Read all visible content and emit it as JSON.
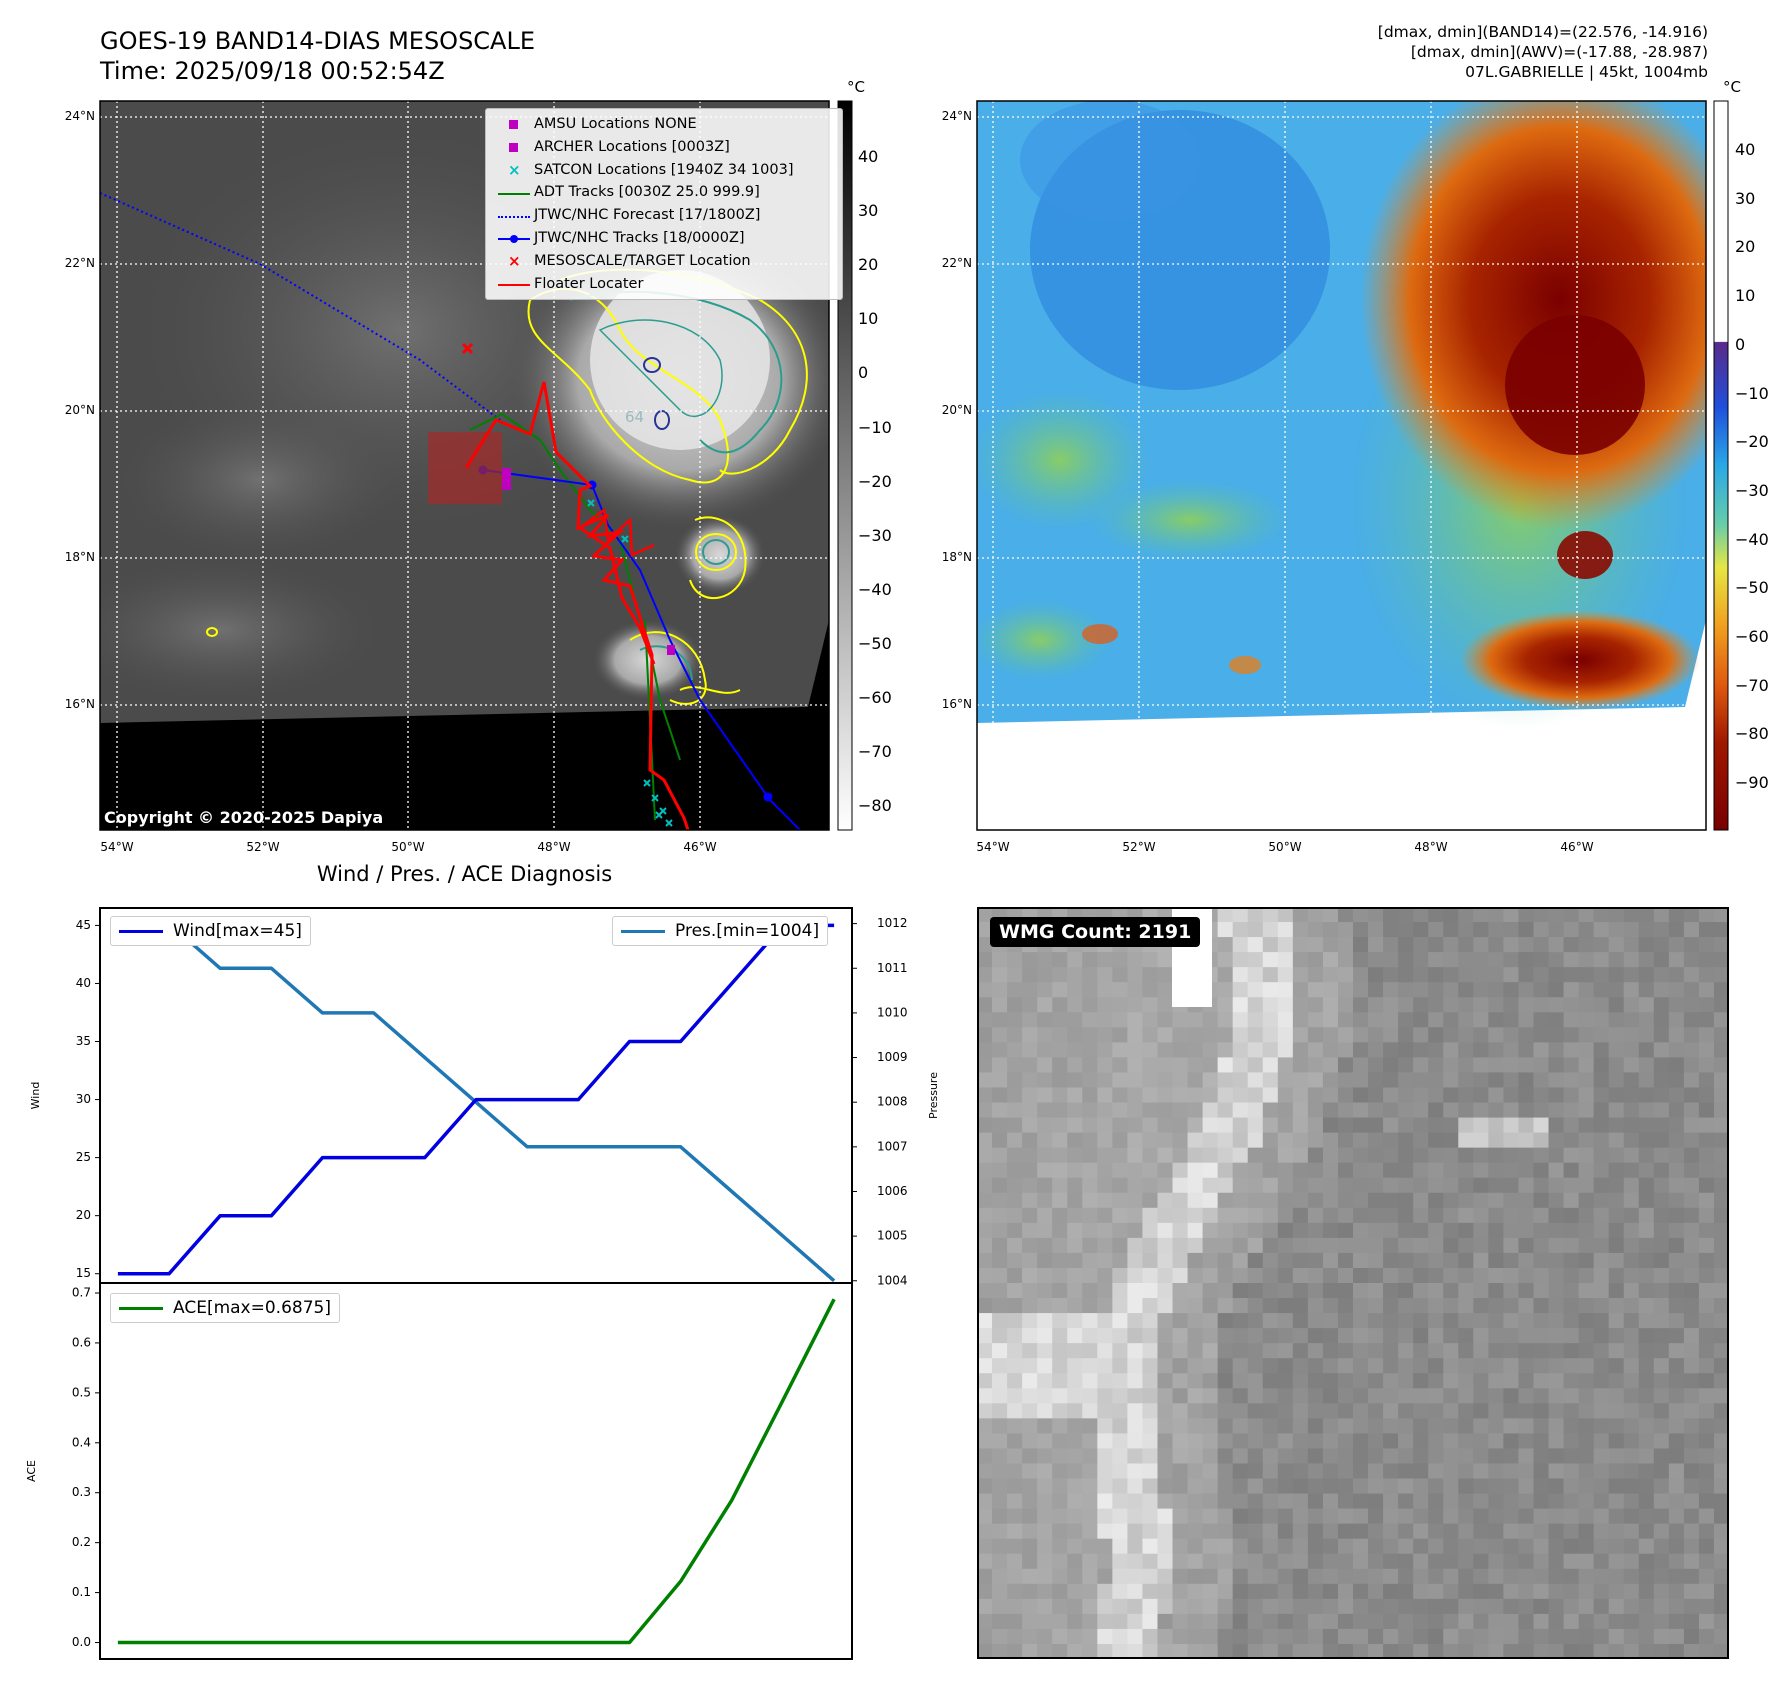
{
  "title": {
    "line1": "GOES-19 BAND14-DIAS MESOSCALE",
    "line2": "Time: 2025/09/18 00:52:54Z"
  },
  "info": {
    "line1": "[dmax, dmin](BAND14)=(22.576, -14.916)",
    "line2": "[dmax, dmin](AWV)=(-17.88, -28.987)",
    "line3": "07L.GABRIELLE | 45kt, 1004mb"
  },
  "colors": {
    "wind": "#0000e0",
    "pressure": "#1f77b4",
    "ace": "#008000",
    "amsu": "#c000c0",
    "satcon": "#00c0c0",
    "adt": "#008000",
    "forecast": "#0000ff",
    "track": "#0000ff",
    "target": "#ff0000",
    "floater": "#ff0000",
    "contour_yellow": "#ffff00",
    "contour_teal": "#2a9d8f",
    "contour_navy": "#283593"
  },
  "map_left": {
    "unit": "°C",
    "colorbar_ticks": [
      "40",
      "30",
      "20",
      "10",
      "0",
      "−10",
      "−20",
      "−30",
      "−40",
      "−50",
      "−60",
      "−70",
      "−80"
    ],
    "lat_labels": [
      "24°N",
      "22°N",
      "20°N",
      "18°N",
      "16°N"
    ],
    "lon_labels": [
      "54°W",
      "52°W",
      "50°W",
      "48°W",
      "46°W"
    ],
    "contour_label": "64",
    "copyright": "Copyright © 2020-2025 Dapiya",
    "legend": [
      {
        "label": "AMSU Locations NONE",
        "icon": "square-icon"
      },
      {
        "label": "ARCHER Locations [0003Z]",
        "icon": "square-icon"
      },
      {
        "label": "SATCON Locations [1940Z 34 1003]",
        "icon": "x-icon"
      },
      {
        "label": "ADT Tracks [0030Z 25.0 999.9]",
        "icon": "line-icon"
      },
      {
        "label": "JTWC/NHC Forecast [17/1800Z]",
        "icon": "dotted-line-icon"
      },
      {
        "label": "JTWC/NHC Tracks [18/0000Z]",
        "icon": "line-dot-icon"
      },
      {
        "label": "MESOSCALE/TARGET Location",
        "icon": "x-icon"
      },
      {
        "label": "Floater Locater",
        "icon": "line-icon"
      }
    ]
  },
  "map_right": {
    "unit": "°C",
    "colorbar_ticks": [
      "40",
      "30",
      "20",
      "10",
      "0",
      "−10",
      "−20",
      "−30",
      "−40",
      "−50",
      "−60",
      "−70",
      "−80",
      "−90"
    ],
    "lat_labels": [
      "24°N",
      "22°N",
      "20°N",
      "18°N",
      "16°N"
    ],
    "lon_labels": [
      "54°W",
      "52°W",
      "50°W",
      "48°W",
      "46°W"
    ]
  },
  "wmg": {
    "label": "WMG Count: 2191"
  },
  "chart_data": [
    {
      "type": "line",
      "title": "Wind / Pres. / ACE Diagnosis",
      "x": [
        0,
        1,
        2,
        3,
        4,
        5,
        6,
        7,
        8,
        9,
        10,
        11,
        12,
        13,
        14
      ],
      "series": [
        {
          "name": "Wind[max=45]",
          "axis": "left",
          "values": [
            15,
            15,
            20,
            20,
            25,
            25,
            25,
            30,
            30,
            30,
            35,
            35,
            40,
            45,
            45
          ]
        },
        {
          "name": "Pres.[min=1004]",
          "axis": "right",
          "values": [
            1012,
            1012,
            1011,
            1011,
            1010,
            1010,
            1009,
            1008,
            1007,
            1007,
            1007,
            1007,
            1006,
            1005,
            1004
          ]
        }
      ],
      "ylabel": "Wind",
      "ylabel_right": "Pressure",
      "ylim": [
        14.2,
        46.5
      ],
      "ylim_right": [
        1003.95,
        1012.35
      ],
      "yticks": [
        "15",
        "20",
        "25",
        "30",
        "35",
        "40",
        "45"
      ],
      "yticks_right": [
        "1004",
        "1005",
        "1006",
        "1007",
        "1008",
        "1009",
        "1010",
        "1011",
        "1012"
      ],
      "legend": [
        "upper-left",
        "upper-right"
      ]
    },
    {
      "type": "line",
      "x": [
        0,
        1,
        2,
        3,
        4,
        5,
        6,
        7,
        8,
        9,
        10,
        11,
        12,
        13,
        14
      ],
      "series": [
        {
          "name": "ACE[max=0.6875]",
          "values": [
            0,
            0,
            0,
            0,
            0,
            0,
            0,
            0,
            0,
            0,
            0,
            0.1225,
            0.285,
            0.485,
            0.6875
          ]
        }
      ],
      "ylabel": "ACE",
      "ylim": [
        -0.033,
        0.72
      ],
      "yticks": [
        "0.0",
        "0.1",
        "0.2",
        "0.3",
        "0.4",
        "0.5",
        "0.6",
        "0.7"
      ],
      "legend": "upper-left"
    }
  ]
}
